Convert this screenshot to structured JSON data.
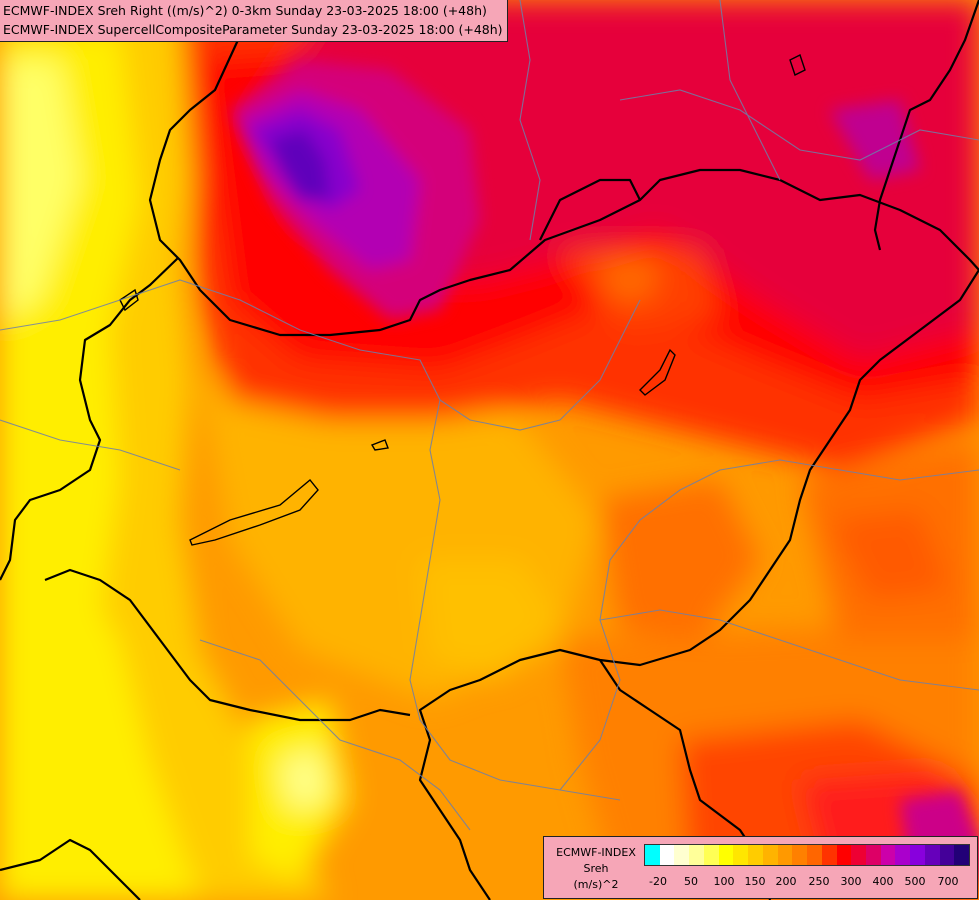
{
  "header": {
    "line1": "ECMWF-INDEX Sreh Right ((m/s)^2) 0-3km Sunday 23-03-2025 18:00 (+48h)",
    "line2": "ECMWF-INDEX SupercellCompositeParameter Sunday 23-03-2025 18:00 (+48h)"
  },
  "legend": {
    "title_line1": "ECMWF-INDEX",
    "title_line2": "Sreh",
    "title_line3": "(m/s)^2",
    "swatches": [
      "#00ffff",
      "#ffffff",
      "#ffffd0",
      "#ffff99",
      "#ffff55",
      "#ffff00",
      "#ffe600",
      "#ffcc00",
      "#ffb300",
      "#ff9900",
      "#ff8000",
      "#ff6600",
      "#ff3300",
      "#ff0000",
      "#ee0033",
      "#dd0066",
      "#cc00aa",
      "#aa00cc",
      "#8800dd",
      "#6600bb",
      "#440099",
      "#220077"
    ],
    "ticks": [
      "-20",
      "50",
      "100",
      "150",
      "200",
      "250",
      "300",
      "400",
      "500",
      "700"
    ]
  }
}
